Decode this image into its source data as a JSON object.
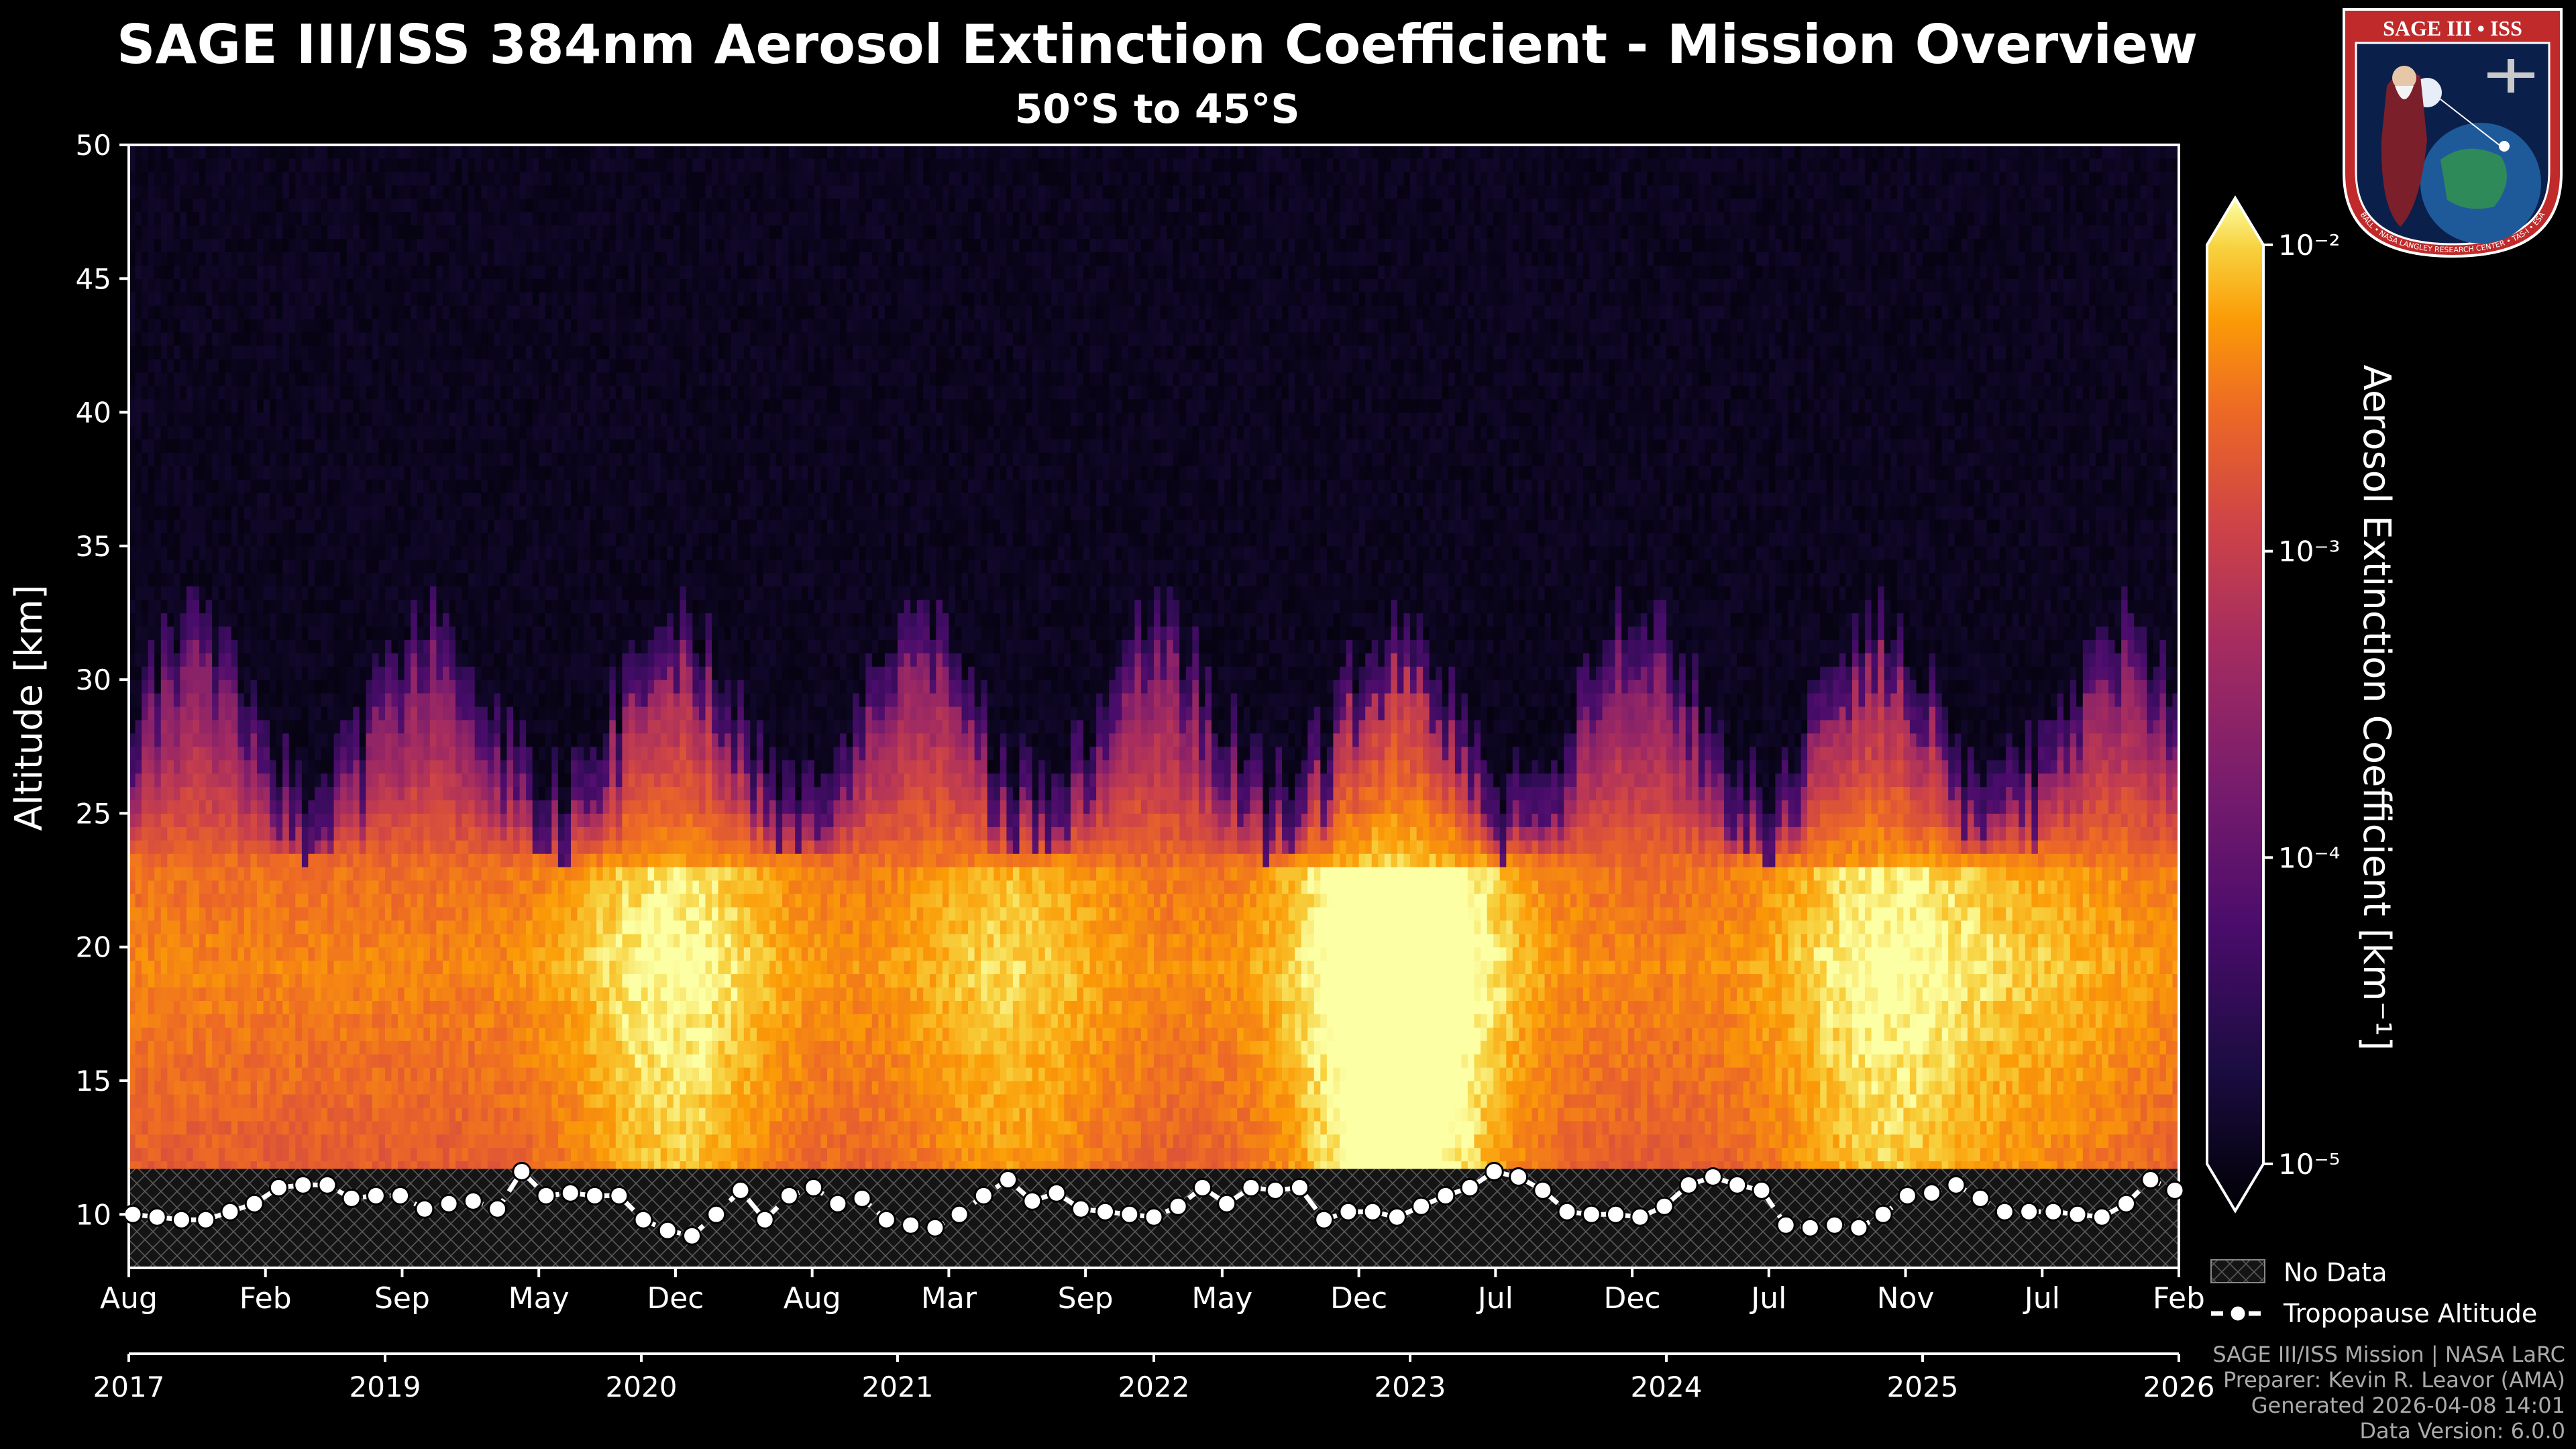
{
  "title": "SAGE III/ISS 384nm Aerosol Extinction Coefficient - Mission Overview",
  "subtitle": "50°S to 45°S",
  "logo": {
    "top_text": "SAGE III • ISS",
    "ring_text": "BALL • NASA LANGLEY RESEARCH CENTER • TAS-I • ESA"
  },
  "credits": {
    "line1": "SAGE III/ISS Mission | NASA LaRC",
    "line2": "Preparer: Kevin R. Leavor (AMA)",
    "line3": "Generated 2026-04-08 14:01",
    "line4": "Data Version: 6.0.0"
  },
  "chart_data": {
    "type": "heatmap",
    "title": "SAGE III/ISS 384nm Aerosol Extinction Coefficient - Mission Overview",
    "subtitle": "50°S to 45°S",
    "ylabel": "Altitude [km]",
    "ylim": [
      8,
      50
    ],
    "yticks": [
      10,
      15,
      20,
      25,
      30,
      35,
      40,
      45,
      50
    ],
    "xaxis_month_ticks": [
      "Aug",
      "Feb",
      "Sep",
      "May",
      "Dec",
      "Aug",
      "Mar",
      "Sep",
      "May",
      "Dec",
      "Jul",
      "Dec",
      "Jul",
      "Nov",
      "Jul",
      "Feb"
    ],
    "xaxis_year_ticks": [
      "2017",
      "2019",
      "2020",
      "2021",
      "2022",
      "2023",
      "2024",
      "2025",
      "2026"
    ],
    "colorbar": {
      "label": "Aerosol Extinction Coefficient [km⁻¹]",
      "scale": "log",
      "range": [
        1e-05,
        0.01
      ],
      "ticks": [
        "10⁻⁵",
        "10⁻⁴",
        "10⁻³",
        "10⁻²"
      ],
      "colormap": "inferno",
      "extend": "both"
    },
    "no_data_below_km": 11.7,
    "legend": [
      {
        "label": "No Data",
        "style": "hatched"
      },
      {
        "label": "Tropopause Altitude",
        "style": "dashed line with circle markers"
      }
    ],
    "tropopause": {
      "name": "Tropopause Altitude",
      "values_km": [
        10.0,
        9.9,
        9.8,
        9.8,
        10.1,
        10.4,
        11.0,
        11.1,
        11.1,
        10.6,
        10.7,
        10.7,
        10.2,
        10.4,
        10.5,
        10.2,
        11.6,
        10.7,
        10.8,
        10.7,
        10.7,
        9.8,
        9.4,
        9.2,
        10.0,
        10.9,
        9.8,
        10.7,
        11.0,
        10.4,
        10.6,
        9.8,
        9.6,
        9.5,
        10.0,
        10.7,
        11.3,
        10.5,
        10.8,
        10.2,
        10.1,
        10.0,
        9.9,
        10.3,
        11.0,
        10.4,
        11.0,
        10.9,
        11.0,
        9.8,
        10.1,
        10.1,
        9.9,
        10.3,
        10.7,
        11.0,
        11.6,
        11.4,
        10.9,
        10.1,
        10.0,
        10.0,
        9.9,
        10.3,
        11.1,
        11.4,
        11.1,
        10.9,
        9.6,
        9.5,
        9.6,
        9.5,
        10.0,
        10.7,
        10.8,
        11.1,
        10.6,
        10.1,
        10.1,
        10.1,
        10.0,
        9.9,
        10.4,
        11.3,
        10.9
      ]
    }
  }
}
